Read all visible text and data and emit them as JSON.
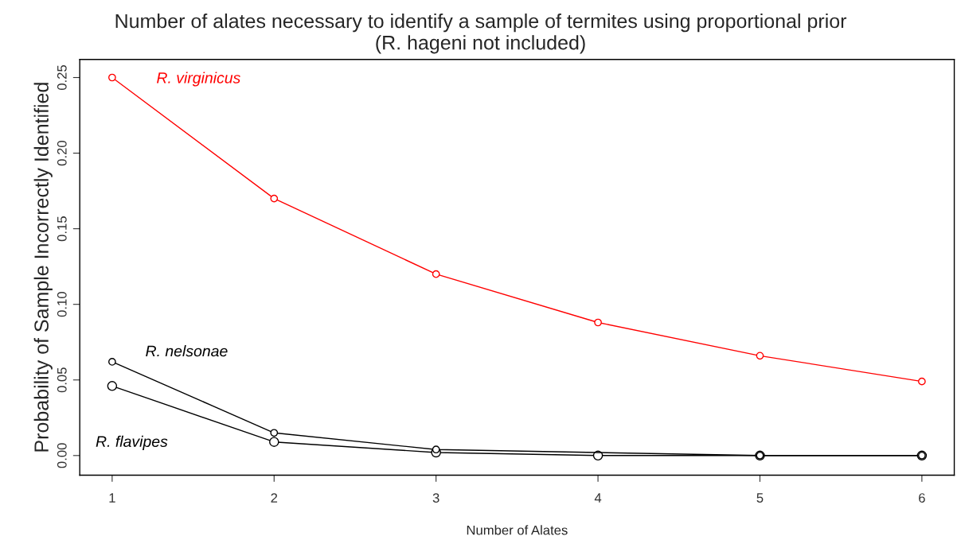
{
  "chart_data": {
    "type": "line",
    "title": "Number of alates necessary to identify a sample of termites using proportional prior",
    "subtitle": "(R. hageni not included)",
    "xlabel": "Number of Alates",
    "ylabel": "Probability of Sample Incorrectly Identified",
    "x": [
      1,
      2,
      3,
      4,
      5,
      6
    ],
    "series": [
      {
        "name": "R. virginicus",
        "color": "#ff0000",
        "values": [
          0.25,
          0.17,
          0.12,
          0.088,
          0.066,
          0.049
        ]
      },
      {
        "name": "R. nelsonae",
        "color": "#000000",
        "values": [
          0.062,
          0.015,
          0.004,
          null,
          0.0,
          0.0
        ]
      },
      {
        "name": "R. flavipes",
        "color": "#000000",
        "values": [
          0.046,
          0.009,
          0.002,
          0.0,
          0.0,
          0.0
        ]
      }
    ],
    "xlim": [
      0.8,
      6.2
    ],
    "ylim": [
      -0.013,
      0.262
    ],
    "xticks": [
      1,
      2,
      3,
      4,
      5,
      6
    ],
    "yticks": [
      {
        "value": 0,
        "label": "0.00"
      },
      {
        "value": 0.05,
        "label": "0.05"
      },
      {
        "value": 0.1,
        "label": "0.10"
      },
      {
        "value": 0.15,
        "label": "0.15"
      },
      {
        "value": 0.2,
        "label": "0.20"
      },
      {
        "value": 0.25,
        "label": "0.25"
      }
    ],
    "marker": "circle",
    "line_style": "solid",
    "grid": false,
    "legend": false
  }
}
